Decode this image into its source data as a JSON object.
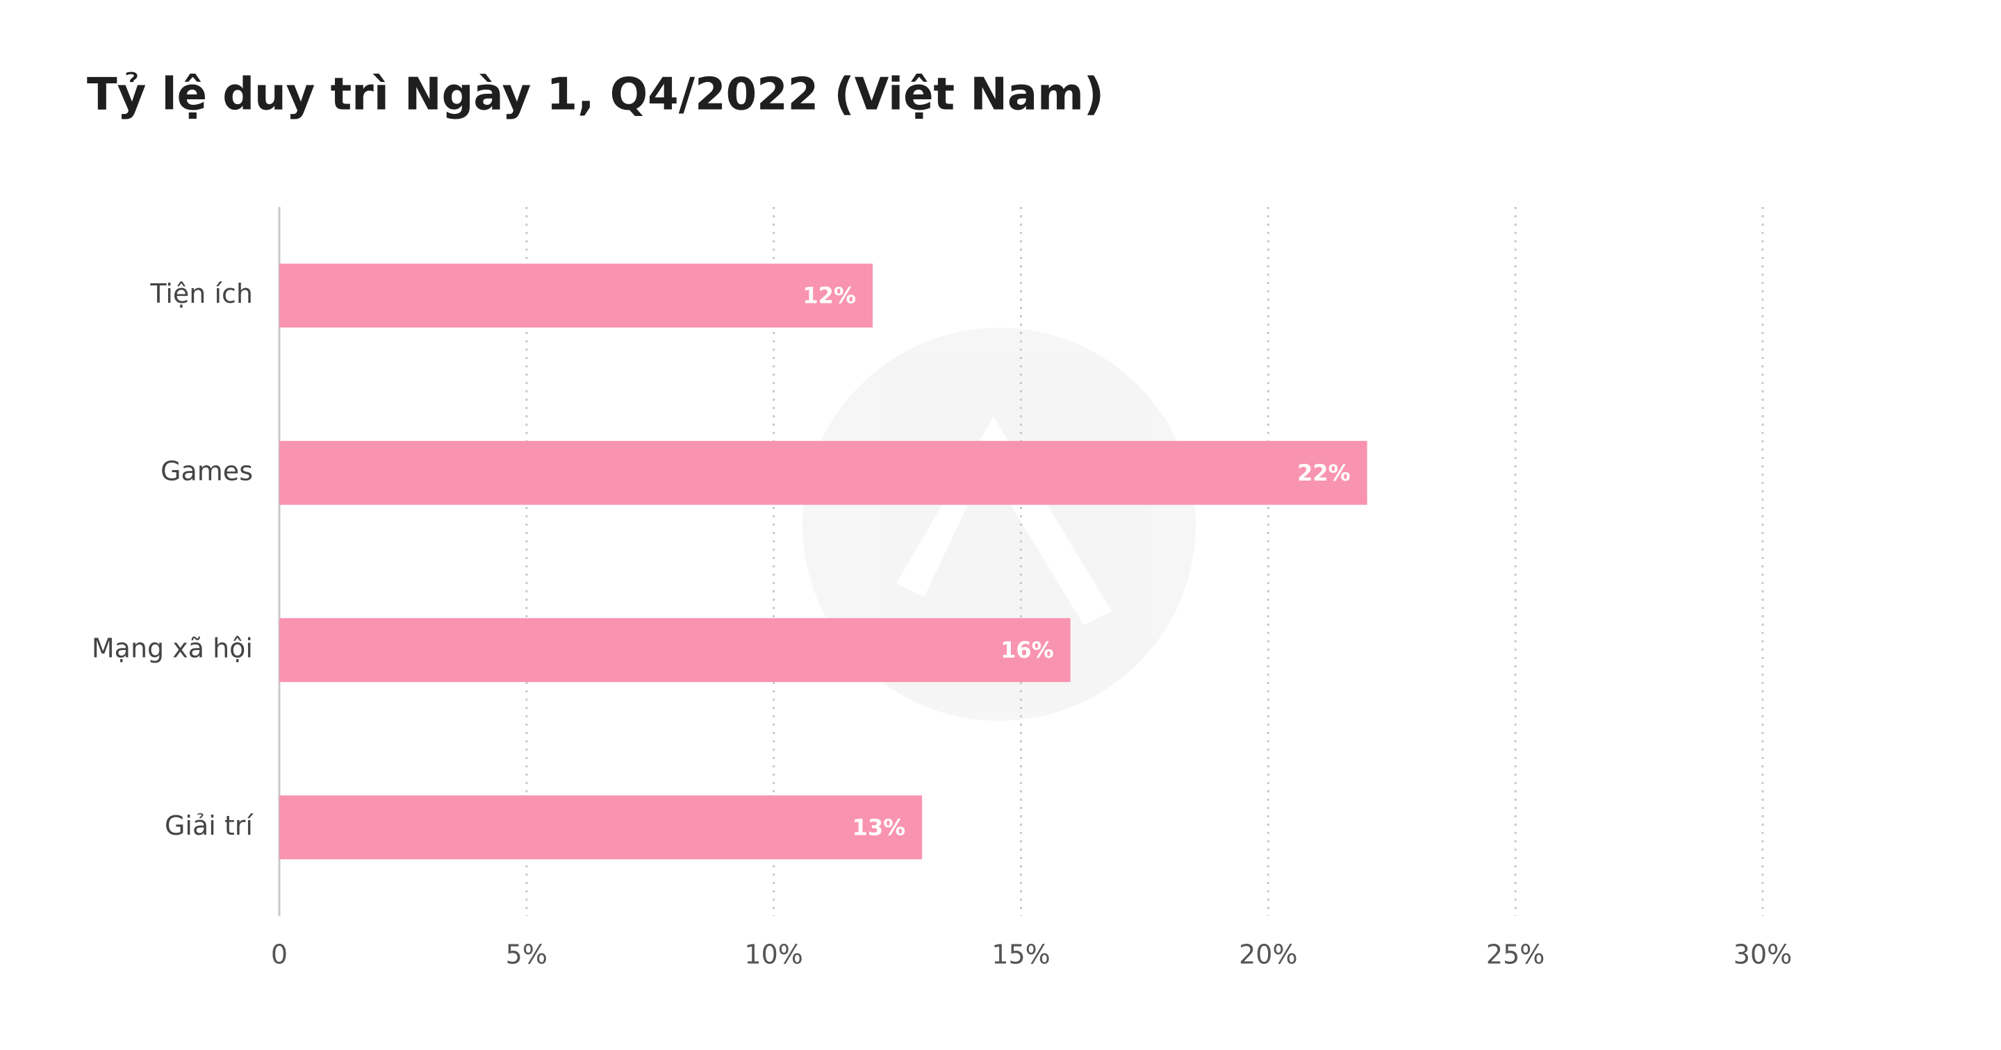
{
  "chart_data": {
    "type": "bar",
    "orientation": "horizontal",
    "title": "Tỷ lệ duy trì Ngày 1, Q4/2022 (Việt Nam)",
    "categories": [
      "Tiện ích",
      "Games",
      "Mạng xã hội",
      "Giải trí"
    ],
    "values": [
      12,
      22,
      16,
      13
    ],
    "value_labels": [
      "12%",
      "22%",
      "16%",
      "13%"
    ],
    "color": "#f994b0",
    "xlim": [
      0,
      30
    ],
    "xticks": [
      0,
      {
        "value": 5,
        "label": "5%"
      },
      {
        "value": 10,
        "label": "10%"
      },
      {
        "value": 15,
        "label": "15%"
      },
      {
        "value": 20,
        "label": "20%"
      },
      {
        "value": 25,
        "label": "25%"
      },
      {
        "value": 30,
        "label": "30%"
      }
    ],
    "grid": true
  }
}
